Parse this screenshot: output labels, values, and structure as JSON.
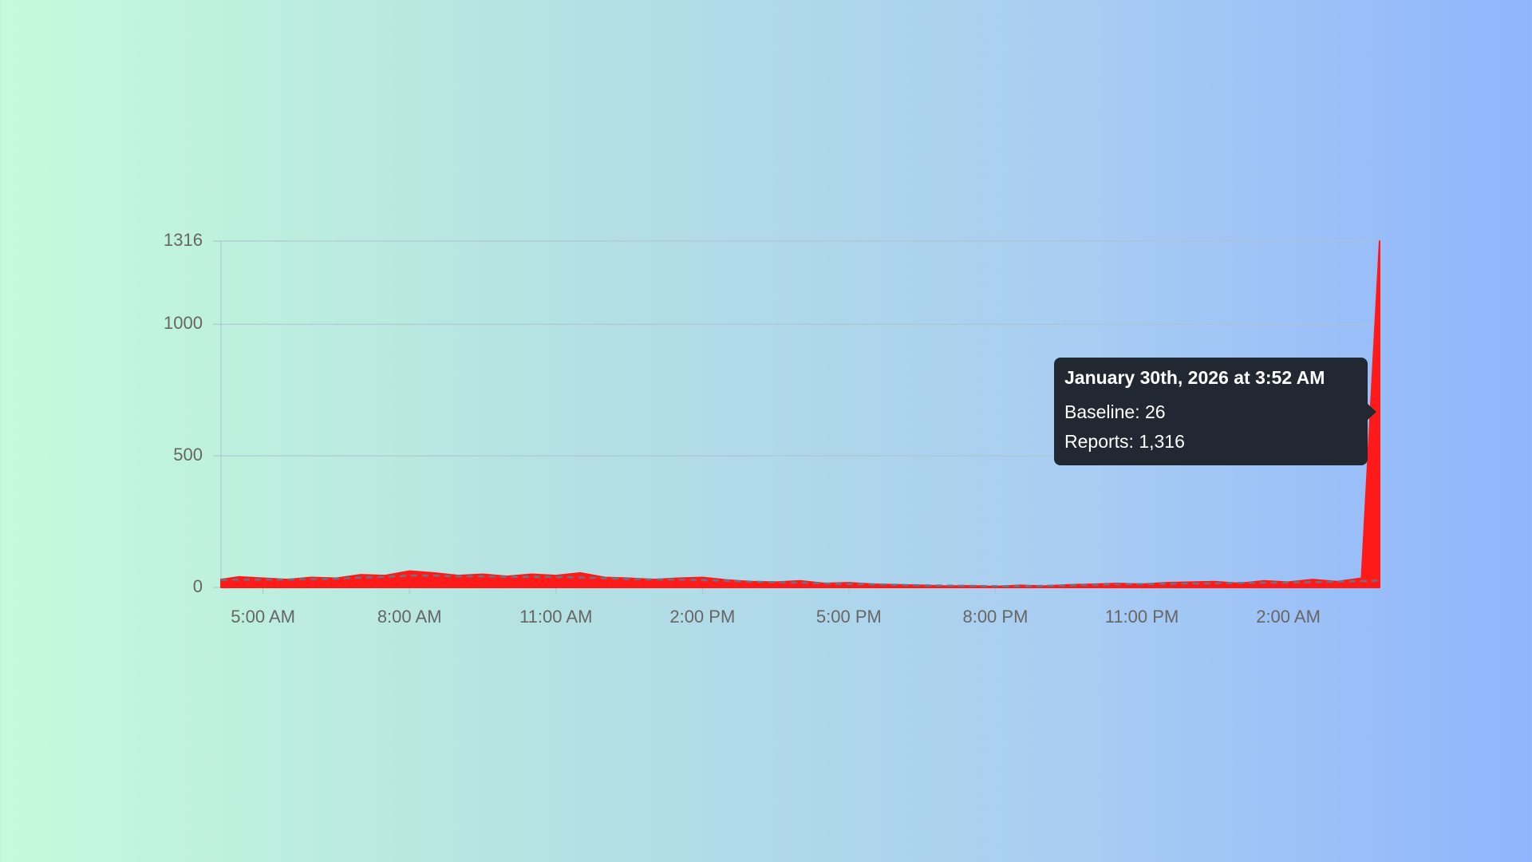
{
  "chart_data": {
    "type": "line",
    "x": [
      4.14,
      4.5,
      5,
      5.5,
      6,
      6.5,
      7,
      7.5,
      8,
      8.5,
      9,
      9.5,
      10,
      10.5,
      11,
      11.5,
      12,
      12.5,
      13,
      13.5,
      14,
      14.5,
      15,
      15.5,
      16,
      16.5,
      17,
      17.5,
      18,
      18.5,
      19,
      19.5,
      20,
      20.5,
      21,
      21.5,
      22,
      22.5,
      23,
      23.5,
      24,
      24.5,
      25,
      25.5,
      26,
      26.5,
      27,
      27.5,
      27.87
    ],
    "series": [
      {
        "name": "Reports",
        "color": "#ff1a1a",
        "fill": true,
        "values": [
          30,
          40,
          35,
          30,
          38,
          35,
          48,
          45,
          62,
          55,
          45,
          50,
          42,
          50,
          45,
          55,
          38,
          35,
          30,
          35,
          38,
          28,
          22,
          20,
          25,
          15,
          18,
          12,
          10,
          8,
          5,
          6,
          3,
          8,
          5,
          10,
          12,
          15,
          12,
          18,
          20,
          22,
          15,
          25,
          20,
          30,
          22,
          35,
          1316
        ]
      },
      {
        "name": "Baseline",
        "color": "#6b7480",
        "dashed": true,
        "values": [
          28,
          30,
          30,
          30,
          32,
          33,
          38,
          40,
          45,
          45,
          42,
          42,
          40,
          40,
          40,
          38,
          35,
          32,
          30,
          30,
          28,
          25,
          22,
          20,
          18,
          15,
          13,
          12,
          10,
          8,
          7,
          6,
          5,
          5,
          6,
          8,
          10,
          12,
          13,
          14,
          15,
          16,
          17,
          18,
          19,
          20,
          22,
          24,
          26
        ]
      }
    ],
    "xlim": [
      4.14,
      27.87
    ],
    "xticks": [
      {
        "value": 5,
        "label": "5:00 AM"
      },
      {
        "value": 8,
        "label": "8:00 AM"
      },
      {
        "value": 11,
        "label": "11:00 AM"
      },
      {
        "value": 14,
        "label": "2:00 PM"
      },
      {
        "value": 17,
        "label": "5:00 PM"
      },
      {
        "value": 20,
        "label": "8:00 PM"
      },
      {
        "value": 23,
        "label": "11:00 PM"
      },
      {
        "value": 26,
        "label": "2:00 AM"
      }
    ],
    "ylim": [
      0,
      1316
    ],
    "yticks": [
      0,
      500,
      1000,
      1316
    ],
    "grid": true,
    "tooltip": {
      "title": "January 30th, 2026 at 3:52 AM",
      "lines": [
        "Baseline: 26",
        "Reports: 1,316"
      ]
    }
  }
}
